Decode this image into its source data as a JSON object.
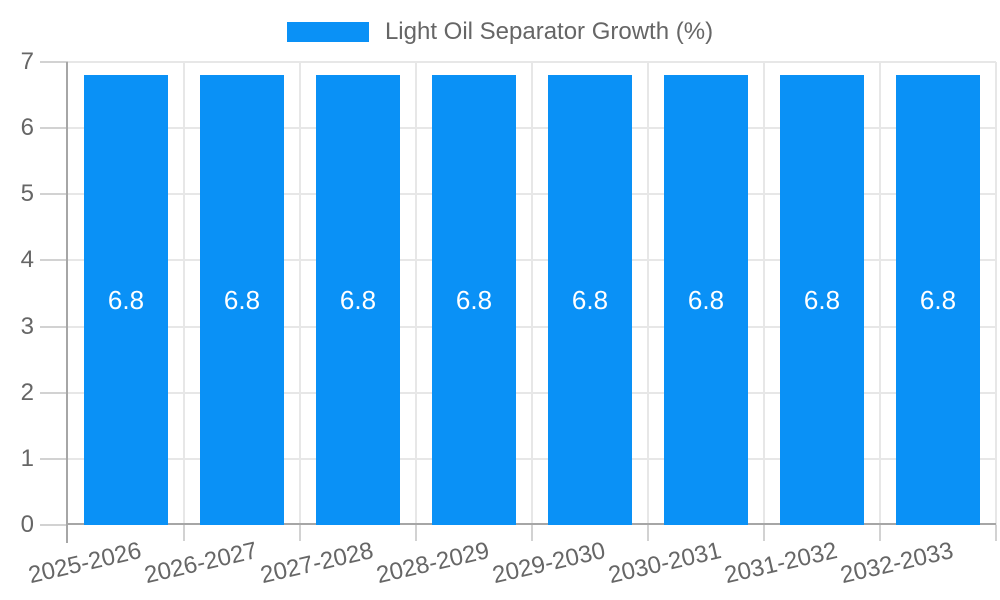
{
  "legend": {
    "series_label": "Light Oil Separator Growth (%)",
    "position": "top"
  },
  "chart_data": {
    "type": "bar",
    "title": "",
    "xlabel": "",
    "ylabel": "",
    "categories": [
      "2025-2026",
      "2026-2027",
      "2027-2028",
      "2028-2029",
      "2029-2030",
      "2030-2031",
      "2031-2032",
      "2032-2033"
    ],
    "values": [
      6.8,
      6.8,
      6.8,
      6.8,
      6.8,
      6.8,
      6.8,
      6.8
    ],
    "value_labels": [
      "6.8",
      "6.8",
      "6.8",
      "6.8",
      "6.8",
      "6.8",
      "6.8",
      "6.8"
    ],
    "series": [
      {
        "name": "Light Oil Separator Growth (%)",
        "values": [
          6.8,
          6.8,
          6.8,
          6.8,
          6.8,
          6.8,
          6.8,
          6.8
        ]
      }
    ],
    "ylim": [
      0,
      7
    ],
    "y_ticks": [
      0,
      1,
      2,
      3,
      4,
      5,
      6,
      7
    ],
    "grid": true,
    "legend_position": "top",
    "x_label_rotation_deg": -13
  },
  "colors": {
    "bar": "#0a91f6",
    "grid": "#e7e7e7",
    "tick_mark": "#d2d2d2",
    "axis": "#a6a6a6",
    "tick_text": "#666666",
    "legend_text": "#666666",
    "value_text": "#ffffff",
    "background": "#ffffff"
  }
}
